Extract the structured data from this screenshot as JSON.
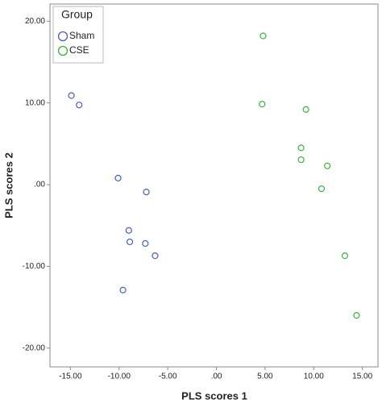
{
  "chart_data": {
    "type": "scatter",
    "x_label": "PLS scores 1",
    "y_label": "PLS scores 2",
    "legend_title": "Group",
    "legend": "top-left",
    "xlim": [
      -17.1,
      16.6
    ],
    "ylim": [
      -22.3,
      22.1
    ],
    "xticks": [
      {
        "value": -15,
        "label": "-15.00"
      },
      {
        "value": -10,
        "label": "-10.00"
      },
      {
        "value": -5,
        "label": "-5.00"
      },
      {
        "value": 0,
        "label": ".00"
      },
      {
        "value": 5,
        "label": "5.00"
      },
      {
        "value": 10,
        "label": "10.00"
      },
      {
        "value": 15,
        "label": "15.00"
      }
    ],
    "yticks": [
      {
        "value": -20,
        "label": "-20.00"
      },
      {
        "value": -10,
        "label": "-10.00"
      },
      {
        "value": 0,
        "label": ".00"
      },
      {
        "value": 10,
        "label": "10.00"
      },
      {
        "value": 20,
        "label": "20.00"
      }
    ],
    "series": [
      {
        "name": "Sham",
        "color": "#4a5fb0",
        "x": [
          -14.9,
          -14.1,
          -10.1,
          -7.2,
          -9.0,
          -8.9,
          -7.3,
          -6.3,
          -9.6
        ],
        "values": [
          10.9,
          9.75,
          0.8,
          -0.9,
          -5.6,
          -7.0,
          -7.2,
          -8.7,
          -12.9
        ]
      },
      {
        "name": "CSE",
        "color": "#3cb043",
        "x": [
          4.8,
          4.7,
          9.2,
          8.7,
          8.7,
          11.4,
          10.8,
          13.2,
          14.4
        ],
        "values": [
          18.2,
          9.85,
          9.2,
          4.5,
          3.05,
          2.3,
          -0.5,
          -8.7,
          -16.0
        ]
      }
    ]
  }
}
